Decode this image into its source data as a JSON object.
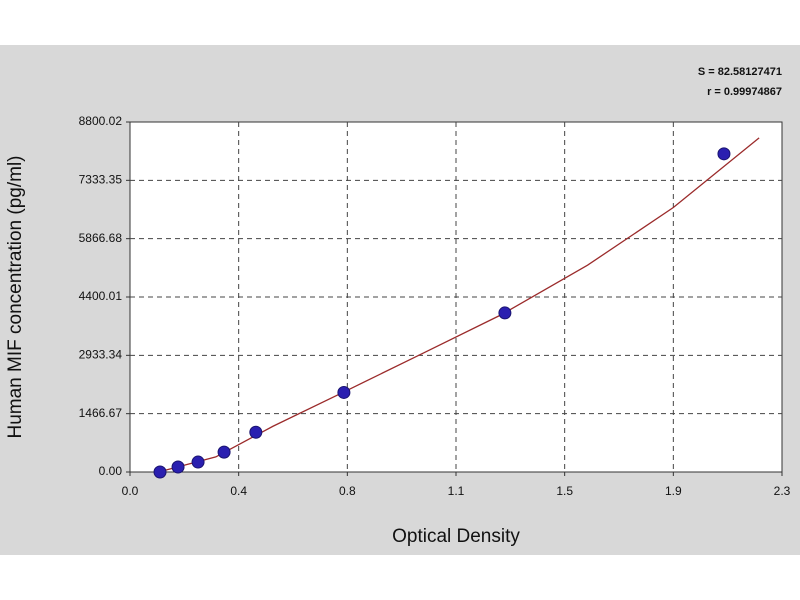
{
  "chart_data": {
    "type": "scatter",
    "x_label": "Optical Density",
    "y_label": "Human MIF concentration (pg/ml)",
    "annotations": [
      "S = 82.58127471",
      "r = 0.99974867"
    ],
    "xlim": [
      0,
      2.28
    ],
    "ylim": [
      0,
      8800.02
    ],
    "xticks": [
      {
        "value": 0,
        "label": "0.0"
      },
      {
        "value": 0.38,
        "label": "0.4"
      },
      {
        "value": 0.76,
        "label": "0.8"
      },
      {
        "value": 1.14,
        "label": "1.1"
      },
      {
        "value": 1.52,
        "label": "1.5"
      },
      {
        "value": 1.9,
        "label": "1.9"
      },
      {
        "value": 2.28,
        "label": "2.3"
      }
    ],
    "yticks": [
      {
        "value": 0,
        "label": "0.00"
      },
      1466.67,
      2933.34,
      4400.01,
      5866.68,
      7333.35,
      8800.02
    ],
    "grid": true,
    "series": [
      {
        "color": "#2a1fb0",
        "x": [
          0.105,
          0.168,
          0.238,
          0.329,
          0.44,
          0.748,
          1.311,
          2.077
        ],
        "values": [
          0,
          125,
          250,
          500,
          1000,
          2000,
          4000,
          8000
        ]
      }
    ],
    "fit": {
      "color": "#9b2b2b",
      "x": [
        0.1,
        0.3,
        0.5,
        0.75,
        1.0,
        1.3,
        1.6,
        1.9,
        2.2
      ],
      "values": [
        0,
        380,
        1150,
        2020,
        2900,
        3960,
        5200,
        6650,
        8400
      ]
    }
  }
}
